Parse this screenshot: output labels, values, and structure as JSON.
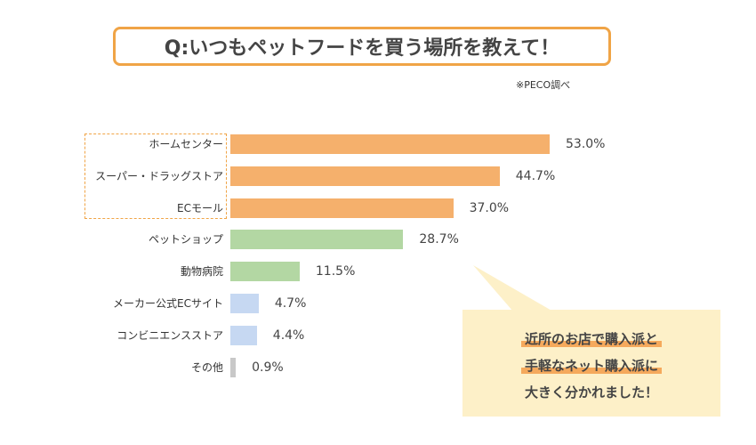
{
  "title": "Q:いつもペットフードを買う場所を教えて！",
  "source_note": "※PECO調べ",
  "callout": {
    "lines": [
      "近所のお店で購入派と",
      "手軽なネット購入派に",
      "大きく分かれました！"
    ]
  },
  "colors": {
    "orange": "#f5b06c",
    "green": "#b3d7a3",
    "blue": "#c6d8f2",
    "gray": "#c8c8c8"
  },
  "chart_data": {
    "type": "bar",
    "orientation": "horizontal",
    "title": "Q:いつもペットフードを買う場所を教えて！",
    "categories": [
      "ホームセンター",
      "スーパー・ドラッグストア",
      "ECモール",
      "ペットショップ",
      "動物病院",
      "メーカー公式ECサイト",
      "コンビニエンスストア",
      "その他"
    ],
    "values": [
      53.0,
      44.7,
      37.0,
      28.7,
      11.5,
      4.7,
      4.4,
      0.9
    ],
    "value_labels": [
      "53.0%",
      "44.7%",
      "37.0%",
      "28.7%",
      "11.5%",
      "4.7%",
      "4.4%",
      "0.9%"
    ],
    "bar_colors": [
      "orange",
      "orange",
      "orange",
      "green",
      "green",
      "blue",
      "blue",
      "gray"
    ],
    "xlim": [
      0,
      60
    ],
    "grid": false
  }
}
